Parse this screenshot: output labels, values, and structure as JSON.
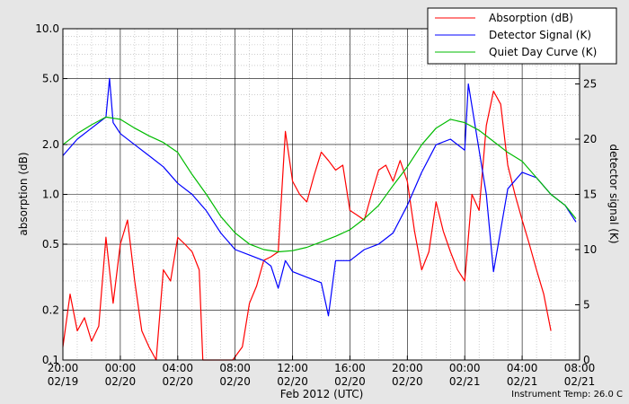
{
  "chart_data": {
    "type": "line",
    "xlabel": "Feb 2012 (UTC)",
    "x_ticks": [
      {
        "time": "2012-02-19 20:00",
        "line1": "20:00",
        "line2": "02/19"
      },
      {
        "time": "2012-02-20 00:00",
        "line1": "00:00",
        "line2": "02/20"
      },
      {
        "time": "2012-02-20 04:00",
        "line1": "04:00",
        "line2": "02/20"
      },
      {
        "time": "2012-02-20 08:00",
        "line1": "08:00",
        "line2": "02/20"
      },
      {
        "time": "2012-02-20 12:00",
        "line1": "12:00",
        "line2": "02/20"
      },
      {
        "time": "2012-02-20 16:00",
        "line1": "16:00",
        "line2": "02/20"
      },
      {
        "time": "2012-02-20 20:00",
        "line1": "20:00",
        "line2": "02/20"
      },
      {
        "time": "2012-02-21 00:00",
        "line1": "00:00",
        "line2": "02/21"
      },
      {
        "time": "2012-02-21 04:00",
        "line1": "04:00",
        "line2": "02/21"
      },
      {
        "time": "2012-02-21 08:00",
        "line1": "08:00",
        "line2": "02/21"
      }
    ],
    "xlim": [
      "2012-02-19 20:00",
      "2012-02-21 08:00"
    ],
    "left_axis": {
      "label": "absorption (dB)",
      "scale": "log",
      "range": [
        0.1,
        10.0
      ],
      "tick_values": [
        0.1,
        0.2,
        0.5,
        1.0,
        2.0,
        5.0,
        10.0
      ],
      "tick_labels": [
        "0.1",
        "0.2",
        "0.5",
        "1.0",
        "2.0",
        "5.0",
        "10.0"
      ]
    },
    "right_axis": {
      "label": "detector signal (K)",
      "scale": "linear",
      "range": [
        0,
        30
      ],
      "tick_values": [
        0,
        5,
        10,
        15,
        20,
        25
      ],
      "tick_labels": [
        "0",
        "5",
        "10",
        "15",
        "20",
        "25"
      ]
    },
    "grid": true,
    "legend_position": "top-right",
    "series": [
      {
        "name": "Absorption (dB)",
        "color": "#ff0000",
        "axis": "left",
        "x": [
          "2012-02-19 20:00",
          "2012-02-19 20:30",
          "2012-02-19 21:00",
          "2012-02-19 21:30",
          "2012-02-19 22:00",
          "2012-02-19 22:30",
          "2012-02-19 23:00",
          "2012-02-19 23:30",
          "2012-02-20 00:00",
          "2012-02-20 00:30",
          "2012-02-20 01:00",
          "2012-02-20 01:30",
          "2012-02-20 02:00",
          "2012-02-20 02:30",
          "2012-02-20 03:00",
          "2012-02-20 03:30",
          "2012-02-20 04:00",
          "2012-02-20 04:30",
          "2012-02-20 05:00",
          "2012-02-20 05:30",
          "2012-02-20 05:45",
          "2012-02-20 07:50",
          "2012-02-20 08:30",
          "2012-02-20 09:00",
          "2012-02-20 09:30",
          "2012-02-20 10:00",
          "2012-02-20 10:30",
          "2012-02-20 11:00",
          "2012-02-20 11:30",
          "2012-02-20 12:00",
          "2012-02-20 12:30",
          "2012-02-20 13:00",
          "2012-02-20 13:30",
          "2012-02-20 14:00",
          "2012-02-20 14:30",
          "2012-02-20 15:00",
          "2012-02-20 15:30",
          "2012-02-20 16:00",
          "2012-02-20 16:30",
          "2012-02-20 17:00",
          "2012-02-20 17:30",
          "2012-02-20 18:00",
          "2012-02-20 18:30",
          "2012-02-20 19:00",
          "2012-02-20 19:30",
          "2012-02-20 20:00",
          "2012-02-20 20:30",
          "2012-02-20 21:00",
          "2012-02-20 21:30",
          "2012-02-20 22:00",
          "2012-02-20 22:30",
          "2012-02-20 23:00",
          "2012-02-20 23:30",
          "2012-02-21 00:00",
          "2012-02-21 00:30",
          "2012-02-21 01:00",
          "2012-02-21 01:30",
          "2012-02-21 02:00",
          "2012-02-21 02:30",
          "2012-02-21 03:00",
          "2012-02-21 03:30",
          "2012-02-21 04:00",
          "2012-02-21 04:30",
          "2012-02-21 05:00",
          "2012-02-21 05:30",
          "2012-02-21 06:00"
        ],
        "y": [
          0.12,
          0.25,
          0.15,
          0.18,
          0.13,
          0.16,
          0.55,
          0.22,
          0.5,
          0.7,
          0.3,
          0.15,
          0.12,
          0.1,
          0.35,
          0.3,
          0.55,
          0.5,
          0.45,
          0.35,
          0.1,
          0.1,
          0.12,
          0.22,
          0.28,
          0.4,
          0.42,
          0.45,
          2.4,
          1.2,
          1.0,
          0.9,
          1.3,
          1.8,
          1.6,
          1.4,
          1.5,
          0.8,
          0.75,
          0.7,
          1.0,
          1.4,
          1.5,
          1.2,
          1.6,
          1.2,
          0.6,
          0.35,
          0.45,
          0.9,
          0.6,
          0.45,
          0.35,
          0.3,
          1.0,
          0.8,
          2.6,
          4.2,
          3.5,
          1.5,
          1.0,
          0.7,
          0.5,
          0.35,
          0.25,
          0.15
        ]
      },
      {
        "name": "Detector Signal (K)",
        "color": "#0000ff",
        "axis": "right",
        "x": [
          "2012-02-19 20:00",
          "2012-02-19 21:00",
          "2012-02-19 22:00",
          "2012-02-19 23:00",
          "2012-02-19 23:15",
          "2012-02-19 23:30",
          "2012-02-20 00:00",
          "2012-02-20 01:00",
          "2012-02-20 02:00",
          "2012-02-20 03:00",
          "2012-02-20 04:00",
          "2012-02-20 05:00",
          "2012-02-20 06:00",
          "2012-02-20 07:00",
          "2012-02-20 08:00",
          "2012-02-20 09:00",
          "2012-02-20 10:00",
          "2012-02-20 10:30",
          "2012-02-20 11:00",
          "2012-02-20 11:30",
          "2012-02-20 12:00",
          "2012-02-20 13:00",
          "2012-02-20 14:00",
          "2012-02-20 14:30",
          "2012-02-20 15:00",
          "2012-02-20 16:00",
          "2012-02-20 17:00",
          "2012-02-20 18:00",
          "2012-02-20 19:00",
          "2012-02-20 20:00",
          "2012-02-20 21:00",
          "2012-02-20 22:00",
          "2012-02-20 23:00",
          "2012-02-21 00:00",
          "2012-02-21 00:15",
          "2012-02-21 01:00",
          "2012-02-21 01:30",
          "2012-02-21 02:00",
          "2012-02-21 03:00",
          "2012-02-21 04:00",
          "2012-02-21 05:00",
          "2012-02-21 06:00",
          "2012-02-21 07:00",
          "2012-02-21 07:45"
        ],
        "y": [
          18.5,
          20.0,
          21.0,
          22.0,
          25.5,
          21.5,
          20.5,
          19.5,
          18.5,
          17.5,
          16.0,
          15.0,
          13.5,
          11.5,
          10.0,
          9.5,
          9.0,
          8.5,
          6.5,
          9.0,
          8.0,
          7.5,
          7.0,
          4.0,
          9.0,
          9.0,
          10.0,
          10.5,
          11.5,
          14.0,
          17.0,
          19.5,
          20.0,
          19.0,
          25.0,
          19.0,
          15.0,
          8.0,
          15.5,
          17.0,
          16.5,
          15.0,
          14.0,
          12.5
        ]
      },
      {
        "name": "Quiet Day Curve (K)",
        "color": "#00bb00",
        "axis": "right",
        "x": [
          "2012-02-19 20:00",
          "2012-02-19 21:00",
          "2012-02-19 22:00",
          "2012-02-19 23:00",
          "2012-02-20 00:00",
          "2012-02-20 01:00",
          "2012-02-20 02:00",
          "2012-02-20 03:00",
          "2012-02-20 04:00",
          "2012-02-20 05:00",
          "2012-02-20 06:00",
          "2012-02-20 07:00",
          "2012-02-20 08:00",
          "2012-02-20 09:00",
          "2012-02-20 10:00",
          "2012-02-20 11:00",
          "2012-02-20 12:00",
          "2012-02-20 13:00",
          "2012-02-20 14:00",
          "2012-02-20 15:00",
          "2012-02-20 16:00",
          "2012-02-20 17:00",
          "2012-02-20 18:00",
          "2012-02-20 19:00",
          "2012-02-20 20:00",
          "2012-02-20 21:00",
          "2012-02-20 22:00",
          "2012-02-20 23:00",
          "2012-02-21 00:00",
          "2012-02-21 01:00",
          "2012-02-21 02:00",
          "2012-02-21 03:00",
          "2012-02-21 04:00",
          "2012-02-21 05:00",
          "2012-02-21 06:00",
          "2012-02-21 07:00",
          "2012-02-21 07:45"
        ],
        "y": [
          19.5,
          20.5,
          21.3,
          22.0,
          21.8,
          21.0,
          20.3,
          19.7,
          18.8,
          16.8,
          15.0,
          13.0,
          11.5,
          10.5,
          10.0,
          9.8,
          9.9,
          10.2,
          10.7,
          11.2,
          11.8,
          12.8,
          14.0,
          15.8,
          17.5,
          19.5,
          21.0,
          21.8,
          21.5,
          20.8,
          19.8,
          18.8,
          18.0,
          16.5,
          15.0,
          14.0,
          12.8
        ]
      }
    ],
    "annotation": "Instrument Temp: 26.0 C"
  }
}
